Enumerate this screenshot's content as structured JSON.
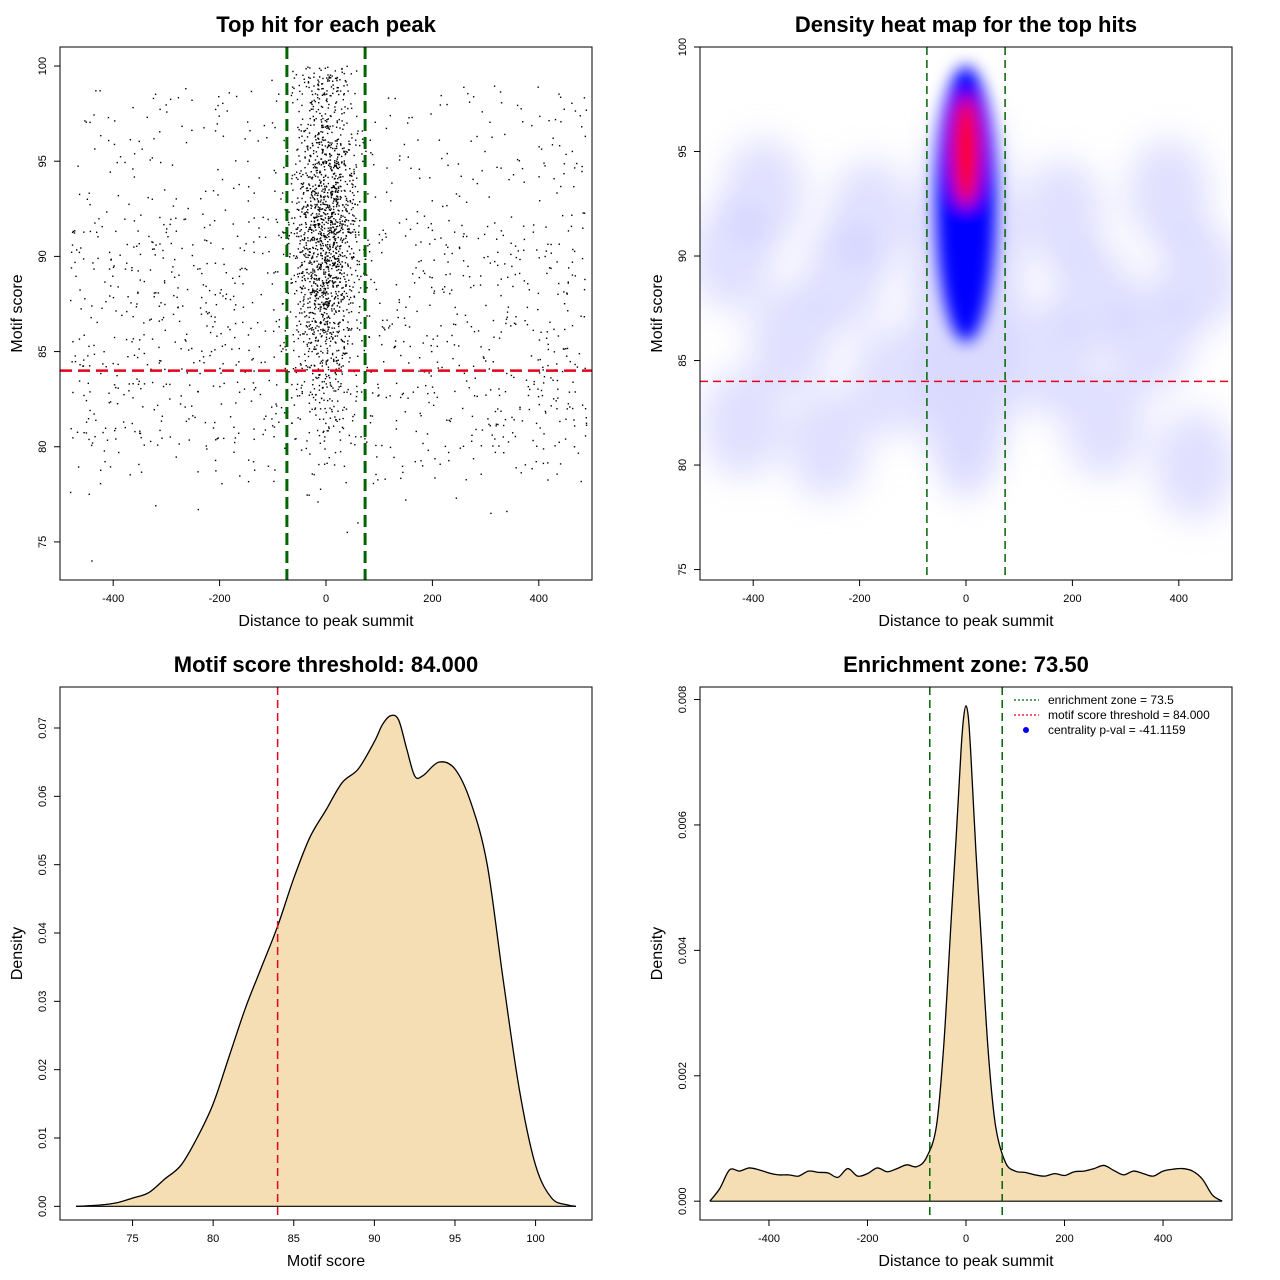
{
  "chart_data": [
    {
      "type": "scatter",
      "title": "Top hit for each peak",
      "xlabel": "Distance to peak summit",
      "ylabel": "Motif score",
      "xlim": [
        -500,
        500
      ],
      "ylim": [
        73,
        101
      ],
      "xticks": [
        -400,
        -200,
        0,
        200,
        400
      ],
      "yticks": [
        75,
        80,
        85,
        90,
        95,
        100
      ],
      "colors": {
        "points": "#000000",
        "threshold": "#e8001c",
        "zone": "#006400"
      },
      "threshold_y": 84,
      "zone_x": [
        -73.5,
        73.5
      ],
      "background": {
        "x_range": [
          -480,
          490
        ],
        "y_range": [
          78,
          99
        ]
      },
      "central_cluster": {
        "x_center": 0,
        "x_spread": 30,
        "y_center": 91,
        "y_spread": 4.5
      },
      "outliers": [
        [
          -440,
          74
        ],
        [
          -445,
          77.5
        ],
        [
          -480,
          77.6
        ],
        [
          -240,
          76.7
        ],
        [
          -320,
          76.9
        ],
        [
          -15,
          77.1
        ],
        [
          40,
          75.5
        ],
        [
          60,
          76
        ],
        [
          150,
          77.2
        ],
        [
          245,
          77.3
        ],
        [
          310,
          76.5
        ],
        [
          340,
          76.6
        ]
      ]
    },
    {
      "type": "heatmap",
      "title": "Density heat map for the top hits",
      "xlabel": "Distance to peak summit",
      "ylabel": "Motif score",
      "xlim": [
        -500,
        500
      ],
      "ylim": [
        74.5,
        100
      ],
      "xticks": [
        -400,
        -200,
        0,
        200,
        400
      ],
      "yticks": [
        75,
        80,
        85,
        90,
        95,
        100
      ],
      "colors": {
        "low": "#ffffff",
        "mid": "#0000ff",
        "high": "#ff0000",
        "threshold": "#e8001c",
        "zone": "#006400"
      },
      "peak": {
        "x": 0,
        "y": 95
      },
      "threshold_y": 84,
      "zone_x": [
        -73.5,
        73.5
      ]
    },
    {
      "type": "area",
      "title": "Motif score threshold: 84.000",
      "xlabel": "Motif score",
      "ylabel": "Density",
      "xlim": [
        70.5,
        103.5
      ],
      "ylim": [
        -0.002,
        0.076
      ],
      "xticks": [
        75,
        80,
        85,
        90,
        95,
        100
      ],
      "yticks": [
        "0.00",
        "0.01",
        "0.02",
        "0.03",
        "0.04",
        "0.05",
        "0.06",
        "0.07"
      ],
      "colors": {
        "fill": "#f5deb3",
        "line": "#000000",
        "threshold": "#e8001c"
      },
      "threshold_x": 84,
      "x": [
        71.5,
        73,
        74,
        75,
        76,
        77,
        78,
        79,
        80,
        81,
        82,
        83,
        84,
        85,
        86,
        87,
        88,
        89,
        90,
        90.5,
        91,
        91.5,
        92,
        92.5,
        93,
        94,
        95,
        96,
        97,
        98,
        99,
        100,
        101,
        102,
        102.5
      ],
      "y": [
        0,
        0.0002,
        0.0005,
        0.0012,
        0.002,
        0.004,
        0.006,
        0.01,
        0.015,
        0.022,
        0.029,
        0.035,
        0.041,
        0.048,
        0.054,
        0.058,
        0.062,
        0.064,
        0.068,
        0.0705,
        0.0718,
        0.0712,
        0.067,
        0.063,
        0.063,
        0.065,
        0.064,
        0.059,
        0.05,
        0.033,
        0.017,
        0.006,
        0.0012,
        0.0002,
        0
      ]
    },
    {
      "type": "area",
      "title": "Enrichment zone: 73.50",
      "xlabel": "Distance to peak summit",
      "ylabel": "Density",
      "xlim": [
        -540,
        540
      ],
      "ylim": [
        -0.0003,
        0.0082
      ],
      "xticks": [
        -400,
        -200,
        0,
        200,
        400
      ],
      "yticks": [
        "0.000",
        "0.002",
        "0.004",
        "0.006",
        "0.008"
      ],
      "colors": {
        "fill": "#f5deb3",
        "line": "#000000",
        "threshold": "#e8001c",
        "zone": "#006400",
        "pval": "#0000ff"
      },
      "zone_x": [
        -73.5,
        73.5
      ],
      "x": [
        -520,
        -500,
        -480,
        -460,
        -440,
        -420,
        -400,
        -380,
        -360,
        -340,
        -320,
        -300,
        -280,
        -260,
        -240,
        -220,
        -200,
        -180,
        -160,
        -140,
        -120,
        -100,
        -80,
        -60,
        -45,
        -30,
        -20,
        -10,
        -5,
        0,
        5,
        10,
        20,
        30,
        45,
        60,
        80,
        100,
        120,
        140,
        160,
        180,
        200,
        220,
        240,
        260,
        280,
        300,
        320,
        340,
        360,
        380,
        400,
        420,
        440,
        460,
        480,
        500,
        520
      ],
      "y": [
        0,
        0.0002,
        0.0005,
        0.00048,
        0.00053,
        0.0005,
        0.00045,
        0.00042,
        0.00042,
        0.0004,
        0.00048,
        0.00046,
        0.00045,
        0.00038,
        0.00052,
        0.0004,
        0.00044,
        0.00053,
        0.00047,
        0.00052,
        0.00058,
        0.00055,
        0.0007,
        0.0012,
        0.0025,
        0.0045,
        0.0058,
        0.0072,
        0.0077,
        0.0079,
        0.0077,
        0.0071,
        0.0056,
        0.0043,
        0.0024,
        0.0012,
        0.00062,
        0.00048,
        0.00046,
        0.00042,
        0.0004,
        0.00044,
        0.00041,
        0.00047,
        0.00048,
        0.00052,
        0.00057,
        0.00049,
        0.00042,
        0.00048,
        0.00044,
        0.0004,
        0.00048,
        0.00051,
        0.00052,
        0.00048,
        0.00035,
        0.0001,
        0
      ],
      "legend": {
        "placement": "top-right",
        "entries": [
          {
            "label": "enrichment zone = 73.5",
            "style": "dotted-line",
            "color": "#006400"
          },
          {
            "label": "motif score threshold = 84.000",
            "style": "dotted-line",
            "color": "#e8001c"
          },
          {
            "label": "centrality p-val = -41.1159",
            "style": "point",
            "color": "#0000ff"
          }
        ]
      }
    }
  ]
}
